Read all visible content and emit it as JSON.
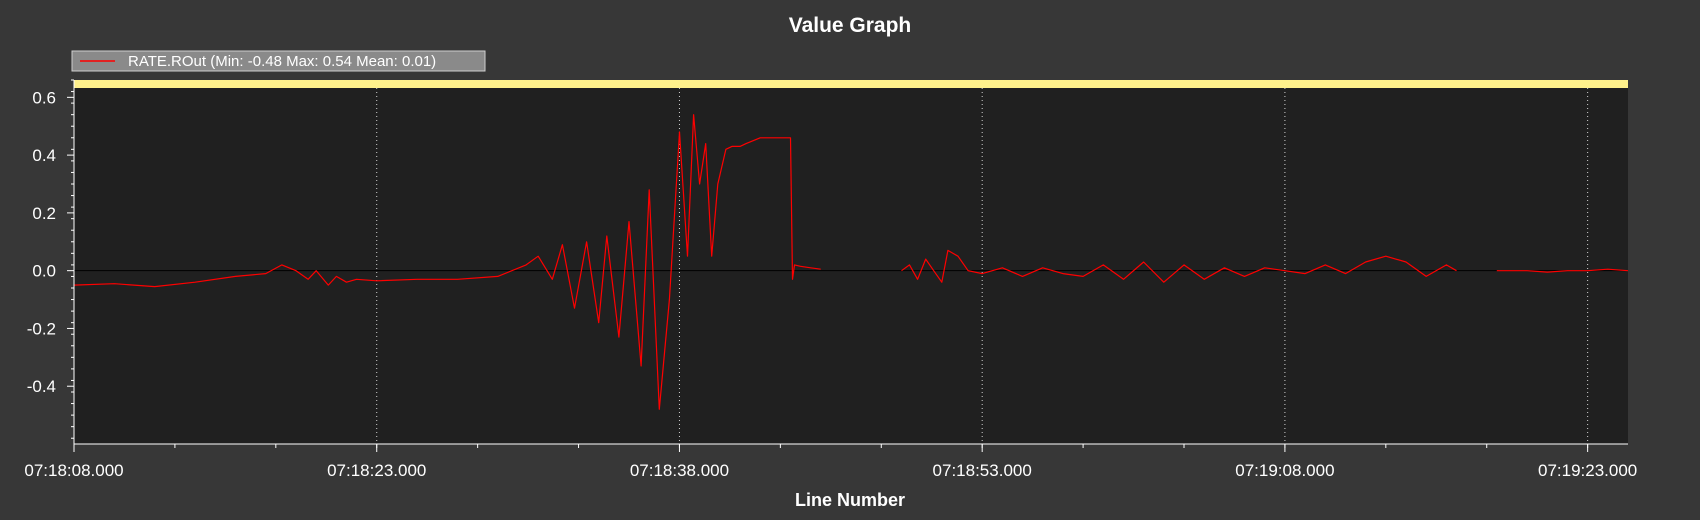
{
  "chart_data": {
    "type": "line",
    "title": "Value Graph",
    "xlabel": "Line Number",
    "ylabel": "",
    "xlim": [
      "07:18:08.000",
      "07:19:25.000"
    ],
    "ylim": [
      -0.6,
      0.66
    ],
    "grid": "vertical-dotted",
    "zero_line": true,
    "x_ticks": [
      "07:18:08.000",
      "07:18:23.000",
      "07:18:38.000",
      "07:18:53.000",
      "07:19:08.000",
      "07:19:23.000"
    ],
    "y_ticks": [
      "0.6",
      "0.4",
      "0.2",
      "0.0",
      "-0.2",
      "-0.4"
    ],
    "legend": {
      "position": "top-left",
      "entries": [
        {
          "label": "RATE.ROut (Min: -0.48 Max: 0.54 Mean: 0.01)",
          "color": "#ff0000"
        }
      ]
    },
    "colors": {
      "background": "#373737",
      "plot_area": "#202020",
      "top_band": "#fff18c",
      "series": "#ff0000",
      "grid": "#ffffff",
      "axis": "#ffffff"
    },
    "series": [
      {
        "name": "RATE.ROut",
        "segments": [
          {
            "x": [
              "07:18:08.000",
              "07:18:10.000",
              "07:18:12.000",
              "07:18:14.000",
              "07:18:16.000",
              "07:18:17.500",
              "07:18:18.300",
              "07:18:19.000",
              "07:18:19.600",
              "07:18:20.000",
              "07:18:20.600",
              "07:18:21.000",
              "07:18:21.500",
              "07:18:22.000",
              "07:18:23.000",
              "07:18:25.000",
              "07:18:27.000",
              "07:18:29.000",
              "07:18:30.400",
              "07:18:31.000",
              "07:18:31.700",
              "07:18:32.200",
              "07:18:32.800",
              "07:18:33.400",
              "07:18:34.000",
              "07:18:34.400",
              "07:18:35.000",
              "07:18:35.500",
              "07:18:36.100",
              "07:18:36.500",
              "07:18:37.000",
              "07:18:37.500",
              "07:18:38.000",
              "07:18:38.400",
              "07:18:38.700",
              "07:18:39.000",
              "07:18:39.300",
              "07:18:39.600",
              "07:18:39.900",
              "07:18:40.300",
              "07:18:40.600",
              "07:18:41.000",
              "07:18:41.300",
              "07:18:42.000",
              "07:18:43.000",
              "07:18:43.500",
              "07:18:43.600",
              "07:18:43.700",
              "07:18:44.000",
              "07:18:44.500",
              "07:18:45.000"
            ],
            "y": [
              -0.05,
              -0.045,
              -0.055,
              -0.04,
              -0.02,
              -0.01,
              0.02,
              0.0,
              -0.03,
              0.0,
              -0.05,
              -0.02,
              -0.04,
              -0.03,
              -0.035,
              -0.03,
              -0.03,
              -0.02,
              0.02,
              0.05,
              -0.03,
              0.09,
              -0.13,
              0.1,
              -0.18,
              0.12,
              -0.23,
              0.17,
              -0.33,
              0.28,
              -0.48,
              -0.1,
              0.48,
              0.05,
              0.54,
              0.3,
              0.44,
              0.05,
              0.3,
              0.42,
              0.43,
              0.43,
              0.44,
              0.46,
              0.46,
              0.46,
              -0.03,
              0.02,
              0.015,
              0.01,
              0.005
            ]
          },
          {
            "x": [
              "07:18:49.000",
              "07:18:49.400",
              "07:18:49.800",
              "07:18:50.200",
              "07:18:50.600",
              "07:18:51.000",
              "07:18:51.300",
              "07:18:51.800",
              "07:18:52.300",
              "07:18:53.000",
              "07:18:54.000",
              "07:18:55.000",
              "07:18:56.000",
              "07:18:57.000",
              "07:18:58.000",
              "07:18:59.000",
              "07:19:00.000",
              "07:19:01.000",
              "07:19:02.000",
              "07:19:03.000",
              "07:19:04.000",
              "07:19:05.000",
              "07:19:06.000",
              "07:19:07.000",
              "07:19:08.000",
              "07:19:09.000",
              "07:19:10.000",
              "07:19:11.000",
              "07:19:12.000",
              "07:19:13.000",
              "07:19:14.000",
              "07:19:15.000",
              "07:19:16.000",
              "07:19:16.500"
            ],
            "y": [
              0.0,
              0.02,
              -0.03,
              0.04,
              0.0,
              -0.04,
              0.07,
              0.05,
              0.0,
              -0.01,
              0.01,
              -0.02,
              0.01,
              -0.01,
              -0.02,
              0.02,
              -0.03,
              0.03,
              -0.04,
              0.02,
              -0.03,
              0.01,
              -0.02,
              0.01,
              0.0,
              -0.01,
              0.02,
              -0.01,
              0.03,
              0.05,
              0.03,
              -0.02,
              0.02,
              0.0
            ]
          },
          {
            "x": [
              "07:19:18.500",
              "07:19:20.000",
              "07:19:21.000",
              "07:19:22.000",
              "07:19:23.000",
              "07:19:24.000",
              "07:19:25.000"
            ],
            "y": [
              0.0,
              0.0,
              -0.005,
              0.0,
              0.0,
              0.005,
              0.0
            ]
          }
        ]
      }
    ]
  }
}
